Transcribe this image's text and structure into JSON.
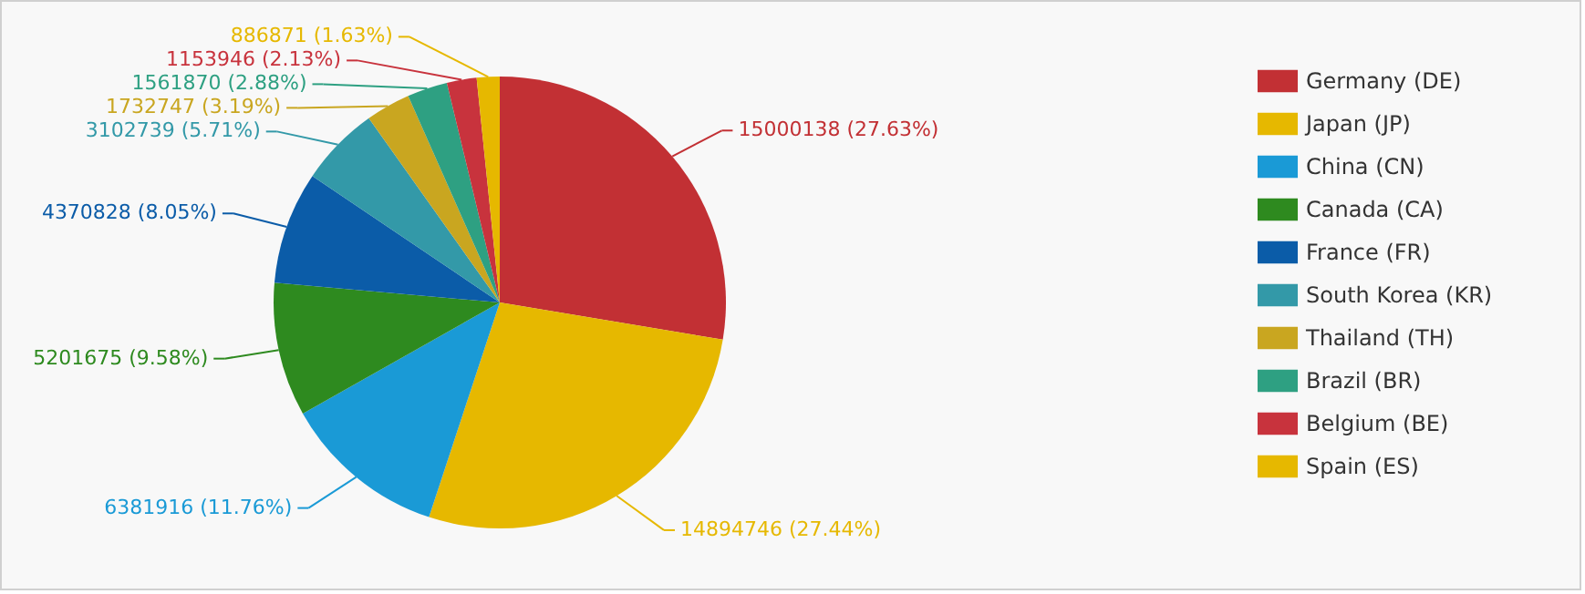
{
  "chart_data": {
    "type": "pie",
    "categories": [
      "Germany (DE)",
      "Japan (JP)",
      "China (CN)",
      "Canada (CA)",
      "France (FR)",
      "South Korea (KR)",
      "Thailand (TH)",
      "Brazil (BR)",
      "Belgium (BE)",
      "Spain (ES)"
    ],
    "values": [
      15000138,
      14894746,
      6381916,
      5201675,
      4370828,
      3102739,
      1732747,
      1561870,
      1153946,
      886871
    ],
    "value_labels": [
      "15000138 (27.63%)",
      "14894746 (27.44%)",
      "6381916 (11.76%)",
      "5201675 (9.58%)",
      "4370828 (8.05%)",
      "3102739 (5.71%)",
      "1732747 (3.19%)",
      "1561870 (2.88%)",
      "1153946 (2.13%)",
      "886871 (1.63%)"
    ],
    "colors": [
      "#c23034",
      "#e6b800",
      "#1a9ad6",
      "#2e8a1f",
      "#0b5ca8",
      "#3399a8",
      "#c9a620",
      "#2ea082",
      "#c8333d",
      "#e6b800"
    ],
    "legend": "right"
  }
}
